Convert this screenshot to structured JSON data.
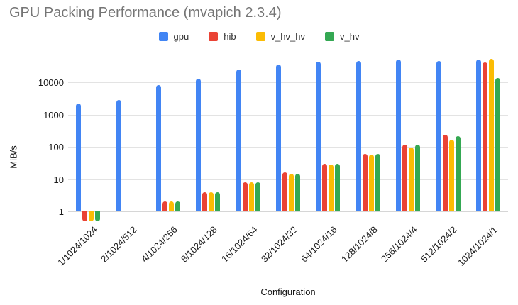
{
  "chart_data": {
    "type": "bar",
    "title": "GPU Packing Performance (mvapich 2.3.4)",
    "xlabel": "Configuration",
    "ylabel": "MiB/s",
    "y_scale": "log",
    "y_ticks": [
      1,
      10,
      100,
      1000,
      10000
    ],
    "ylim": [
      0.4,
      63000
    ],
    "grid": true,
    "legend_position": "top",
    "categories": [
      "1/1024/1024",
      "2/1024/512",
      "4/1024/256",
      "8/1024/128",
      "16/1024/64",
      "32/1024/32",
      "64/1024/16",
      "128/1024/8",
      "256/1024/4",
      "512/1024/2",
      "1024/1024/1"
    ],
    "series": [
      {
        "name": "gpu",
        "color": "#4285F4",
        "values": [
          2200,
          2800,
          8500,
          13000,
          25000,
          36000,
          44000,
          46000,
          51000,
          47000,
          51000
        ]
      },
      {
        "name": "hib",
        "color": "#EA4335",
        "values": [
          0.5,
          null,
          2,
          4,
          8,
          16,
          30,
          60,
          115,
          235,
          42000
        ]
      },
      {
        "name": "v_hv_hv",
        "color": "#FBBC04",
        "values": [
          0.5,
          null,
          2,
          4,
          8,
          15,
          28,
          58,
          98,
          165,
          53000
        ]
      },
      {
        "name": "v_hv",
        "color": "#34A853",
        "values": [
          0.5,
          null,
          2,
          4,
          8,
          15,
          30,
          60,
          115,
          215,
          13500
        ]
      }
    ],
    "colors": {
      "title_text": "#757575",
      "axis_text": "#1a1a1a",
      "gridline": "#e3e3e3",
      "baseline": "#d6d6d6",
      "background": "#ffffff"
    }
  }
}
